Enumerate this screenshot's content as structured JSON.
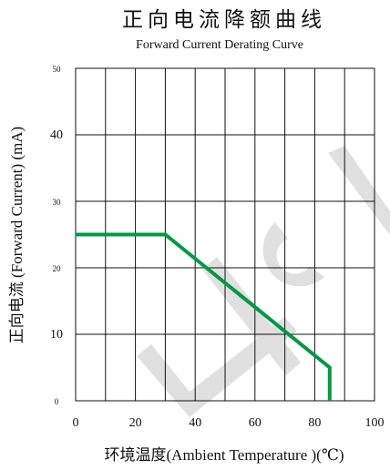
{
  "chart_data": {
    "type": "line",
    "title": "正向电流降额曲线",
    "subtitle": "Forward Current Derating Curve",
    "xlabel": "环境温度(Ambient  Temperature )(℃)",
    "ylabel": "正向电流 (Forward  Current) (mA)",
    "xlim": [
      0,
      100
    ],
    "ylim": [
      0,
      50
    ],
    "x_ticks": [
      "0",
      "20",
      "40",
      "60",
      "80",
      "100"
    ],
    "x_tick_values": [
      0,
      20,
      40,
      60,
      80,
      100
    ],
    "y_ticks": [
      "0",
      "10",
      "20",
      "30",
      "40",
      "50"
    ],
    "y_tick_values": [
      0,
      10,
      20,
      30,
      40,
      50
    ],
    "grid": true,
    "series": [
      {
        "x": [
          0,
          30,
          85,
          85
        ],
        "y": [
          25,
          25,
          5,
          0
        ],
        "color": "#009a44"
      }
    ],
    "watermark": "LIGI"
  }
}
